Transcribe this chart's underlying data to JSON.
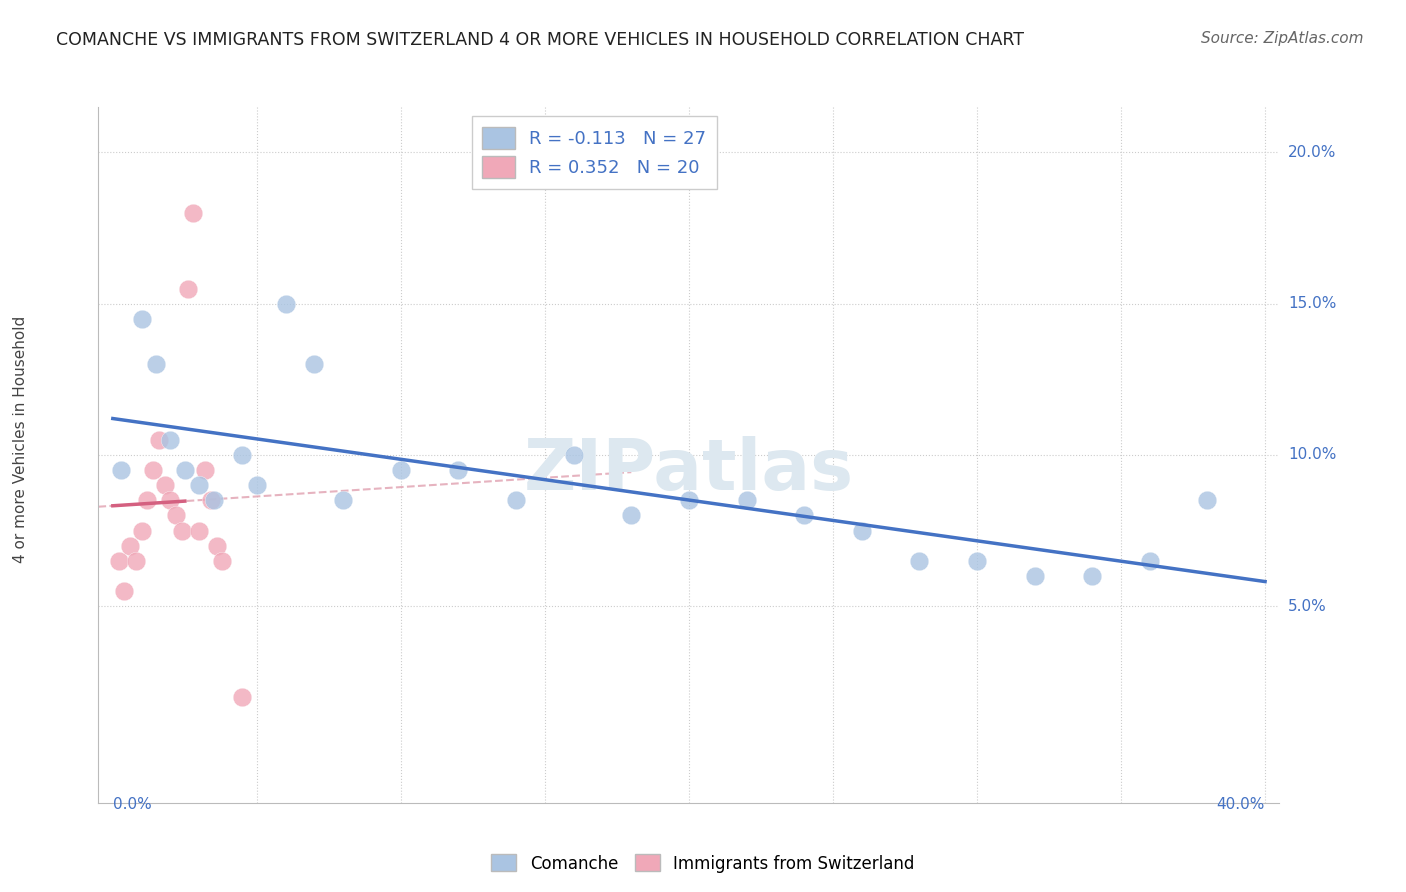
{
  "title": "COMANCHE VS IMMIGRANTS FROM SWITZERLAND 4 OR MORE VEHICLES IN HOUSEHOLD CORRELATION CHART",
  "source": "Source: ZipAtlas.com",
  "ylabel": "4 or more Vehicles in Household",
  "comanche_color": "#aac4e2",
  "switzerland_color": "#f0a8b8",
  "blue_line_color": "#4472c4",
  "pink_line_color": "#d46080",
  "pink_dashed_color": "#e0a0b0",
  "watermark": "ZIPatlas",
  "comanche_x": [
    0.3,
    1.0,
    1.5,
    2.0,
    2.5,
    3.0,
    3.5,
    4.5,
    5.0,
    6.0,
    7.0,
    8.0,
    10.0,
    12.0,
    14.0,
    16.0,
    18.0,
    20.0,
    22.0,
    24.0,
    26.0,
    28.0,
    30.0,
    32.0,
    34.0,
    36.0,
    38.0
  ],
  "comanche_y": [
    9.5,
    14.5,
    13.0,
    10.5,
    9.5,
    9.0,
    8.5,
    10.0,
    9.0,
    15.0,
    13.0,
    8.5,
    9.5,
    9.5,
    8.5,
    10.0,
    8.0,
    8.5,
    8.5,
    8.0,
    7.5,
    6.5,
    6.5,
    6.0,
    6.0,
    6.5,
    8.5
  ],
  "switzerland_x": [
    0.2,
    0.4,
    0.6,
    0.8,
    1.0,
    1.2,
    1.4,
    1.6,
    1.8,
    2.0,
    2.2,
    2.4,
    2.6,
    2.8,
    3.0,
    3.2,
    3.4,
    3.6,
    3.8,
    4.5
  ],
  "switzerland_y": [
    6.5,
    5.5,
    7.0,
    6.5,
    7.5,
    8.5,
    9.5,
    10.5,
    9.0,
    8.5,
    8.0,
    7.5,
    15.5,
    18.0,
    7.5,
    9.5,
    8.5,
    7.0,
    6.5,
    2.0
  ],
  "xlim_min": 0.0,
  "xlim_max": 40.0,
  "ylim_min": 0.0,
  "ylim_max": 21.0,
  "ytick_vals": [
    5.0,
    10.0,
    15.0,
    20.0
  ],
  "ytick_labels": [
    "5.0%",
    "10.0%",
    "15.0%",
    "20.0%"
  ],
  "xtick_labels": [
    "0.0%",
    "40.0%"
  ],
  "legend1_label": "R = -0.113   N = 27",
  "legend2_label": "R = 0.352   N = 20",
  "bottom_legend1": "Comanche",
  "bottom_legend2": "Immigrants from Switzerland"
}
